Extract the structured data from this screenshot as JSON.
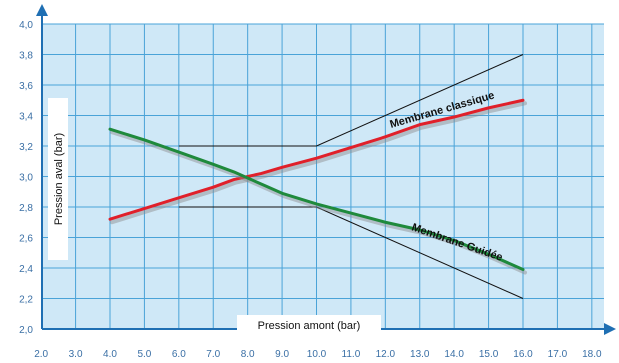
{
  "chart_data": {
    "type": "line",
    "xlabel": "Pression amont (bar)",
    "ylabel": "Pression aval (bar)",
    "xlim": [
      2.0,
      18.0
    ],
    "ylim": [
      2.0,
      4.0
    ],
    "x_ticks": [
      "2.0",
      "3.0",
      "4.0",
      "5.0",
      "6.0",
      "7.0",
      "8.0",
      "9.0",
      "10.0",
      "11.0",
      "12.0",
      "13.0",
      "14.0",
      "15.0",
      "16.0",
      "17.0",
      "18.0"
    ],
    "y_ticks": [
      "2,0",
      "2,2",
      "2,4",
      "2,6",
      "2,8",
      "3,0",
      "3,2",
      "3,4",
      "3,6",
      "3,8",
      "4,0"
    ],
    "grid": true,
    "colors": {
      "plot_bg": "#cfe8f7",
      "grid": "#4aa3d8",
      "axis": "#1f6fb3",
      "classique": "#e0202a",
      "guidee": "#1f8a3c",
      "envelope": "#111111"
    },
    "series": [
      {
        "name": "Membrane classique",
        "x": [
          4.0,
          5.0,
          6.0,
          7.0,
          7.6,
          8.0,
          8.4,
          9.0,
          10.0,
          11.0,
          12.0,
          13.0,
          14.0,
          15.0,
          16.0
        ],
        "y": [
          2.72,
          2.79,
          2.86,
          2.93,
          2.98,
          3.0,
          3.02,
          3.06,
          3.12,
          3.19,
          3.26,
          3.34,
          3.39,
          3.45,
          3.5
        ]
      },
      {
        "name": "Membrane Guidée",
        "x": [
          4.0,
          5.0,
          6.0,
          7.0,
          7.6,
          8.0,
          8.5,
          9.0,
          10.0,
          11.0,
          12.0,
          13.0,
          14.0,
          15.0,
          16.0
        ],
        "y": [
          3.31,
          3.24,
          3.16,
          3.08,
          3.03,
          2.99,
          2.94,
          2.89,
          2.82,
          2.76,
          2.7,
          2.65,
          2.58,
          2.49,
          2.39
        ]
      }
    ],
    "envelope": [
      {
        "x": [
          6.0,
          10.0,
          16.0
        ],
        "y": [
          3.2,
          3.2,
          3.8
        ]
      },
      {
        "x": [
          6.0,
          10.0,
          16.0
        ],
        "y": [
          2.8,
          2.8,
          2.2
        ]
      }
    ]
  }
}
